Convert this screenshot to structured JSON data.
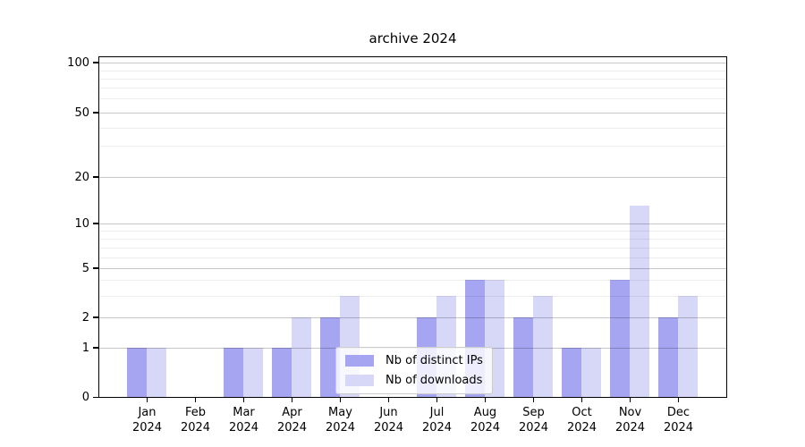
{
  "chart_data": {
    "type": "bar",
    "title": "archive 2024",
    "xlabel": "",
    "ylabel": "",
    "categories": [
      "Jan",
      "Feb",
      "Mar",
      "Apr",
      "May",
      "Jun",
      "Jul",
      "Aug",
      "Sep",
      "Oct",
      "Nov",
      "Dec"
    ],
    "category_year": "2024",
    "series": [
      {
        "name": "Nb of distinct IPs",
        "color": "#a5a5f2",
        "values": [
          1,
          0,
          1,
          1,
          2,
          0,
          2,
          4,
          2,
          1,
          4,
          2
        ]
      },
      {
        "name": "Nb of downloads",
        "color": "#d7d7f8",
        "values": [
          1,
          0,
          1,
          2,
          3,
          0,
          3,
          4,
          3,
          1,
          13,
          3
        ]
      }
    ],
    "yscale": "symlog",
    "ylim": [
      0,
      110
    ],
    "yticks_major": [
      0,
      1,
      2,
      5,
      10,
      20,
      50,
      100
    ],
    "yticks_minor": [
      3,
      4,
      6,
      7,
      8,
      9,
      30,
      40,
      60,
      70,
      80,
      90
    ],
    "grid": "horizontal",
    "legend_position": "lower center",
    "colors": {
      "major_grid": "#c7c7c7",
      "minor_grid": "#ededed",
      "spine": "#000000",
      "background": "#ffffff"
    }
  }
}
